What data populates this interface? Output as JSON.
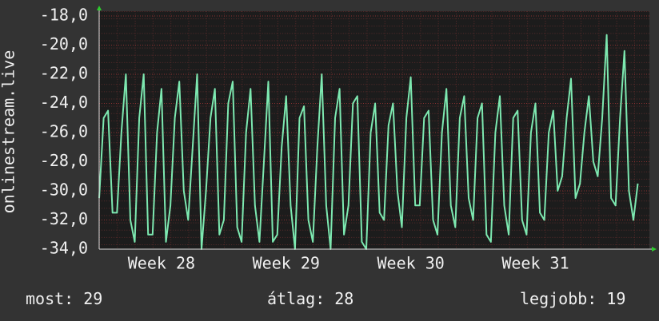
{
  "chart_data": {
    "type": "line",
    "y_label": "onlinestream.live",
    "color": "#7de8b0",
    "values": [
      -30.5,
      -25,
      -24.5,
      -31.5,
      -31.5,
      -26,
      -22,
      -32,
      -33.5,
      -25,
      -22,
      -33,
      -33,
      -26,
      -23,
      -33.5,
      -31,
      -25,
      -22.5,
      -30,
      -32,
      -27,
      -22,
      -34,
      -30,
      -25,
      -23,
      -33,
      -32,
      -24,
      -22.5,
      -32.5,
      -33.5,
      -26,
      -23,
      -31,
      -33.5,
      -28,
      -22.5,
      -33.5,
      -33,
      -27,
      -23.5,
      -31,
      -34,
      -25,
      -24.2,
      -32,
      -33.5,
      -27,
      -22,
      -31,
      -34,
      -25,
      -23,
      -33,
      -31,
      -24,
      -23.5,
      -33.5,
      -34,
      -26,
      -24,
      -31.5,
      -32,
      -25.5,
      -24,
      -30,
      -32.5,
      -25,
      -22.2,
      -31,
      -31,
      -25,
      -24.5,
      -32,
      -33,
      -26,
      -23,
      -31,
      -32.5,
      -25,
      -23.5,
      -30.5,
      -32,
      -25,
      -24,
      -33,
      -33.5,
      -26,
      -23.5,
      -31,
      -33,
      -25,
      -24.5,
      -32,
      -33,
      -26,
      -24,
      -31.5,
      -32,
      -26,
      -24.5,
      -30,
      -29,
      -25,
      -22.3,
      -30.5,
      -29.5,
      -26,
      -23.5,
      -28,
      -29,
      -25,
      -19.3,
      -30.5,
      -31,
      -25,
      -20.4,
      -30,
      -32,
      -29.5
    ],
    "xlim": [
      0,
      123.6
    ],
    "xticks": [
      {
        "value": 14,
        "label": "Week 28"
      },
      {
        "value": 42,
        "label": "Week 29"
      },
      {
        "value": 70,
        "label": "Week 30"
      },
      {
        "value": 98,
        "label": "Week 31"
      }
    ],
    "ylim": [
      -34,
      -18
    ],
    "yticks": [
      {
        "value": -18,
        "label": "-18,0"
      },
      {
        "value": -20,
        "label": "-20,0"
      },
      {
        "value": -22,
        "label": "-22,0"
      },
      {
        "value": -24,
        "label": "-24,0"
      },
      {
        "value": -26,
        "label": "-26,0"
      },
      {
        "value": -28,
        "label": "-28,0"
      },
      {
        "value": -30,
        "label": "-30,0"
      },
      {
        "value": -32,
        "label": "-32,0"
      },
      {
        "value": -34,
        "label": "-34,0"
      }
    ],
    "grid": true,
    "stats": [
      {
        "label": "most:",
        "value": 29
      },
      {
        "label": "átlag:",
        "value": 28
      },
      {
        "label": "legjobb:",
        "value": 19
      }
    ]
  }
}
